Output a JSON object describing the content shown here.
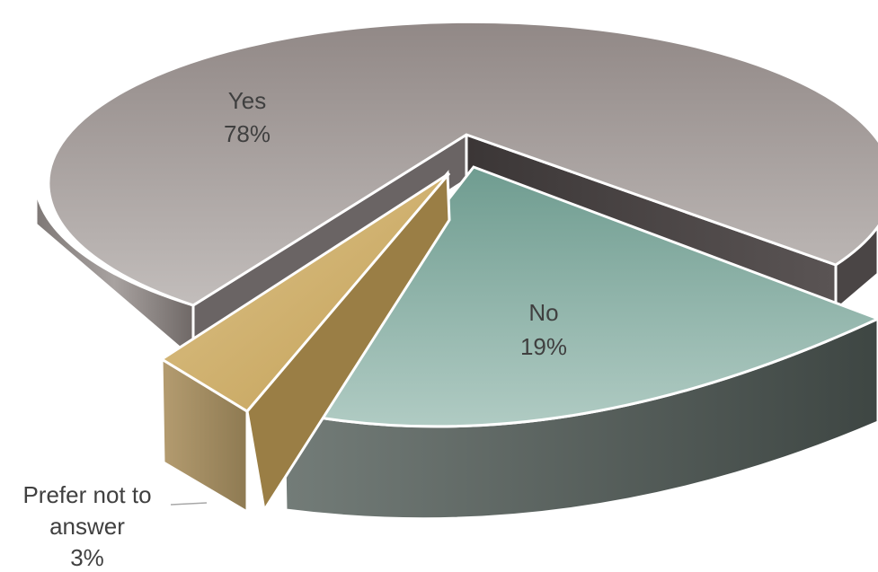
{
  "chart_data": {
    "type": "pie",
    "title": "",
    "categories": [
      "Yes",
      "No",
      "Prefer not to answer"
    ],
    "values": [
      78,
      19,
      3
    ],
    "labels": [
      {
        "name": "Yes",
        "pct": "78%"
      },
      {
        "name": "No",
        "pct": "19%"
      },
      {
        "name_line1": "Prefer not to",
        "name_line2": "answer",
        "pct": "3%"
      }
    ],
    "style": "3d-exploded",
    "legend": "none",
    "colors": {
      "yes_top": "#a39c99",
      "yes_side": "#8a8482",
      "yes_inner": "#4a4545",
      "no_top": "#8fb5ab",
      "no_side": "#4f5753",
      "prefer_top": "#c9ad6e",
      "prefer_side": "#a89060",
      "edge": "#ffffff"
    }
  }
}
